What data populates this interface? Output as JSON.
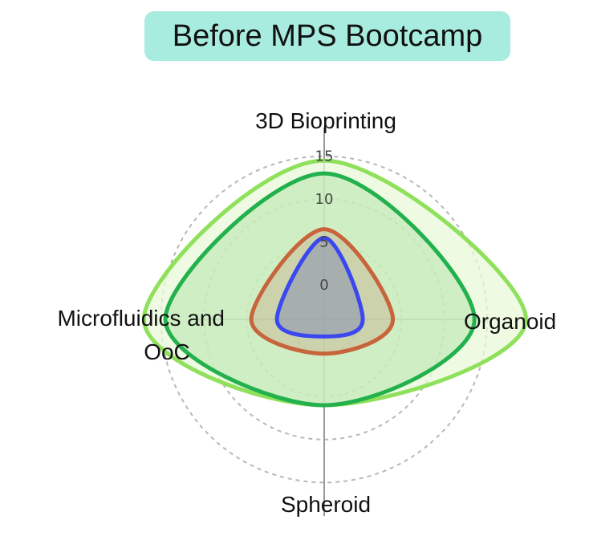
{
  "title": "Before MPS Bootcamp",
  "colors": {
    "title_bg": "#a8ece0",
    "grid": "#b8b8b8",
    "axis": "#999999"
  },
  "chart_data": {
    "type": "radar",
    "axes": [
      "3D Bioprinting",
      "Organoid",
      "Spheroid",
      "Microfluidics and OoC"
    ],
    "axis_label_lines": [
      [
        "3D Bioprinting"
      ],
      [
        "Organoid"
      ],
      [
        "Spheroid"
      ],
      [
        "Microfluidics and",
        "OoC"
      ]
    ],
    "ticks": [
      0,
      5,
      10,
      15
    ],
    "rlim": [
      -4,
      18
    ],
    "grid": true,
    "series": [
      {
        "values": [
          14.5,
          19.5,
          6,
          17
        ],
        "color": "#8fe05a",
        "fill": "#e8f8d8",
        "fill_opacity": 0.75
      },
      {
        "values": [
          13,
          13.5,
          6,
          14.5
        ],
        "color": "#22b14c",
        "fill": "#a8e0a0",
        "fill_opacity": 0.45
      },
      {
        "values": [
          6.5,
          4,
          0,
          4.5
        ],
        "color": "#c8643c",
        "fill": "#c8b090",
        "fill_opacity": 0.45
      },
      {
        "values": [
          5.5,
          0.5,
          -2,
          1.5
        ],
        "color": "#3b48f0",
        "fill": "#8890b0",
        "fill_opacity": 0.55
      }
    ]
  }
}
